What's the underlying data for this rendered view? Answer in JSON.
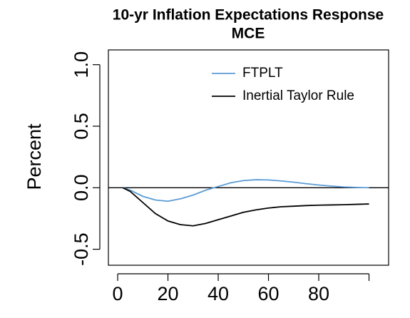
{
  "chart_data": {
    "type": "line",
    "title": "10-yr Inflation Expectations Response",
    "subtitle": "MCE",
    "y_label": "Percent",
    "x": [
      2,
      5,
      10,
      15,
      20,
      25,
      30,
      35,
      40,
      45,
      50,
      55,
      60,
      65,
      70,
      75,
      80,
      85,
      90,
      95,
      100
    ],
    "series": [
      {
        "name": "FTPLT",
        "color": "#5b9bd5",
        "values": [
          0,
          -0.02,
          -0.07,
          -0.1,
          -0.11,
          -0.09,
          -0.06,
          -0.02,
          0.01,
          0.04,
          0.058,
          0.065,
          0.063,
          0.055,
          0.045,
          0.033,
          0.022,
          0.013,
          0.006,
          0.002,
          0
        ]
      },
      {
        "name": "Inertial Taylor Rule",
        "color": "#000000",
        "values": [
          0,
          -0.03,
          -0.12,
          -0.21,
          -0.27,
          -0.3,
          -0.31,
          -0.29,
          -0.26,
          -0.23,
          -0.2,
          -0.18,
          -0.165,
          -0.155,
          -0.15,
          -0.145,
          -0.142,
          -0.14,
          -0.138,
          -0.135,
          -0.132
        ]
      }
    ],
    "hline": 0,
    "xlim": [
      -3.7,
      107.8
    ],
    "ylim": [
      -0.63,
      1.12
    ],
    "xticks": [
      0,
      20,
      40,
      60,
      80,
      {
        "value": 100,
        "label": null
      }
    ],
    "yticks": [
      {
        "value": -0.5,
        "label": "-0.5"
      },
      {
        "value": 0,
        "label": "0.0"
      },
      {
        "value": 0.5,
        "label": "0.5"
      },
      {
        "value": 1,
        "label": "1.0"
      }
    ],
    "legend": "top-right"
  }
}
